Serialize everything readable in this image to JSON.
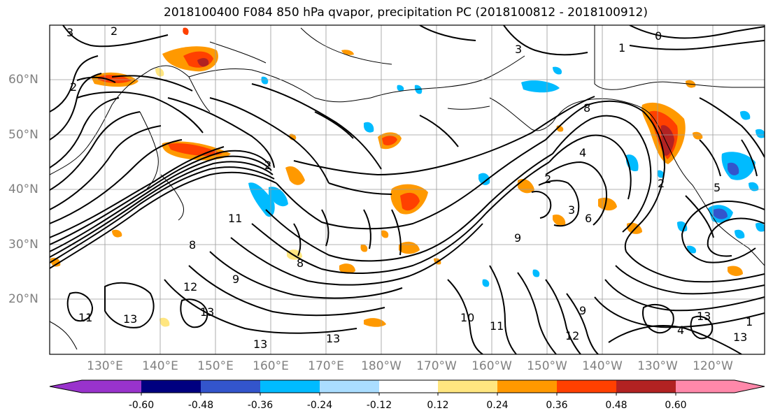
{
  "title": "2018100400 F084 850 hPa qvapor, precipitation PC (2018100812 - 2018100912)",
  "lat_labels": [
    "60°N",
    "50°N",
    "40°N",
    "30°N",
    "20°N"
  ],
  "lon_labels": [
    "130°E",
    "140°E",
    "150°E",
    "160°E",
    "170°E",
    "180°W",
    "170°W",
    "160°W",
    "150°W",
    "140°W",
    "130°W",
    "120°W"
  ],
  "contour_labels": [
    "2",
    "3",
    "2",
    "0",
    "1",
    "3",
    "8",
    "4",
    "3",
    "5",
    "6",
    "2",
    "11",
    "8",
    "8",
    "9",
    "9",
    "12",
    "13",
    "11",
    "13",
    "10",
    "11",
    "12",
    "9",
    "13",
    "4",
    "13",
    "13",
    "13",
    "1",
    "2",
    "2"
  ],
  "colorbar": {
    "colors": [
      "#9933cc",
      "#000080",
      "#3355cc",
      "#00bbff",
      "#aaddff",
      "#ffffff",
      "#ffe680",
      "#ff9900",
      "#ff4000",
      "#b22222",
      "#ff88aa"
    ],
    "tick_labels": [
      "-0.60",
      "-0.48",
      "-0.36",
      "-0.24",
      "-0.12",
      "0.12",
      "0.24",
      "0.36",
      "0.48",
      "0.60"
    ]
  }
}
